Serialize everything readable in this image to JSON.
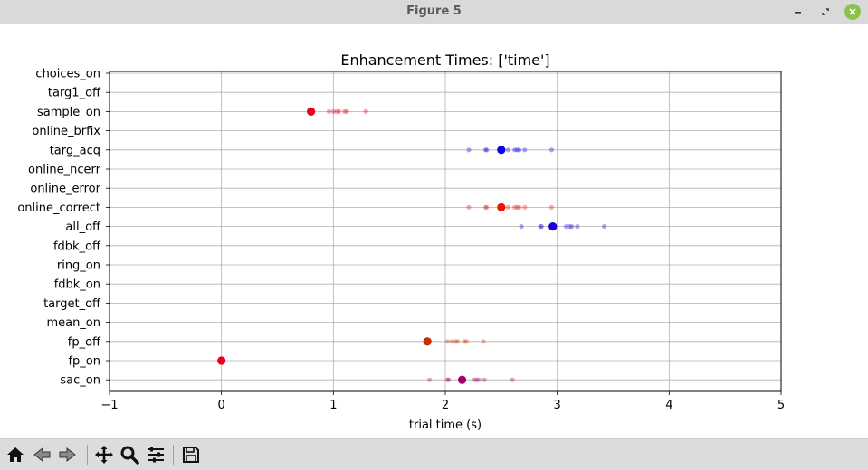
{
  "window": {
    "title": "Figure 5"
  },
  "toolbar": {
    "buttons": [
      {
        "name": "home-button",
        "icon": "home-icon"
      },
      {
        "name": "back-button",
        "icon": "arrow-left-icon"
      },
      {
        "name": "forward-button",
        "icon": "arrow-right-icon"
      },
      {
        "name": "pan-button",
        "icon": "move-icon"
      },
      {
        "name": "zoom-button",
        "icon": "magnifier-icon"
      },
      {
        "name": "configure-subplots-button",
        "icon": "sliders-icon"
      },
      {
        "name": "save-button",
        "icon": "floppy-disk-icon"
      }
    ]
  },
  "chart_data": {
    "type": "scatter",
    "title": "Enhancement Times: ['time']",
    "xlabel": "trial time (s)",
    "ylabel": "",
    "xlim": [
      -1,
      5
    ],
    "xticks": [
      -1,
      0,
      1,
      2,
      3,
      4,
      5
    ],
    "xtick_labels": [
      "−1",
      "0",
      "1",
      "2",
      "3",
      "4",
      "5"
    ],
    "grid": true,
    "categories": [
      "choices_on",
      "targ1_off",
      "sample_on",
      "online_brfix",
      "targ_acq",
      "online_ncerr",
      "online_error",
      "online_correct",
      "all_off",
      "fdbk_off",
      "ring_on",
      "fdbk_on",
      "target_off",
      "mean_on",
      "fp_off",
      "fp_on",
      "sac_on"
    ],
    "series": [
      {
        "category": "sample_on",
        "color": "#e8001c",
        "mean": 0.8,
        "trials": [
          0.96,
          1.0,
          1.03,
          1.05,
          1.1,
          1.12,
          1.29
        ]
      },
      {
        "category": "targ_acq",
        "color": "#0b00e6",
        "mean": 2.5,
        "trials": [
          2.21,
          2.36,
          2.37,
          2.56,
          2.62,
          2.64,
          2.66,
          2.71,
          2.95
        ]
      },
      {
        "category": "online_correct",
        "color": "#ee1600",
        "mean": 2.5,
        "trials": [
          2.21,
          2.36,
          2.37,
          2.56,
          2.62,
          2.64,
          2.66,
          2.71,
          2.95
        ]
      },
      {
        "category": "all_off",
        "color": "#1a00d6",
        "mean": 2.96,
        "trials": [
          2.68,
          2.85,
          2.86,
          3.08,
          3.11,
          3.13,
          3.18,
          3.42
        ]
      },
      {
        "category": "fp_off",
        "color": "#c23000",
        "mean": 1.84,
        "trials": [
          2.02,
          2.06,
          2.09,
          2.11,
          2.17,
          2.19,
          2.34
        ]
      },
      {
        "category": "fp_on",
        "color": "#e8001c",
        "mean": 0.0,
        "trials": []
      },
      {
        "category": "sac_on",
        "color": "#a0006a",
        "mean": 2.15,
        "trials": [
          1.86,
          2.02,
          2.03,
          2.26,
          2.28,
          2.3,
          2.35,
          2.6
        ]
      }
    ]
  }
}
